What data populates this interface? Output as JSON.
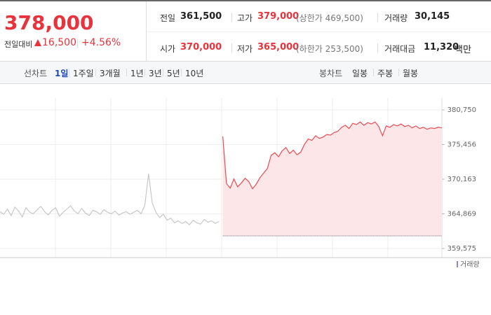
{
  "price": {
    "current": "378,000",
    "change_label": "전일대비",
    "change": "16,500",
    "change_pct": "+4.56%"
  },
  "stats": [
    [
      {
        "label": "전일",
        "value": "361,500"
      },
      {
        "label": "고가",
        "value": "379,000",
        "note": "(상한가 469,500)"
      },
      {
        "label": "거래량",
        "value": "30,145"
      }
    ],
    [
      {
        "label": "시가",
        "value": "370,000"
      },
      {
        "label": "저가",
        "value": "365,000",
        "note": "(하한가 253,500)"
      },
      {
        "label": "거래대금",
        "value": "11,320",
        "unit": "백만"
      }
    ]
  ],
  "tabs": {
    "line_label": "선차트",
    "periods": [
      "1일",
      "1주일",
      "3개월",
      "1년",
      "3년",
      "5년",
      "10년"
    ],
    "active": 0,
    "candle_label": "봉차트",
    "candles": [
      "일봉",
      "주봉",
      "월봉"
    ]
  },
  "chart_data": {
    "type": "line",
    "volume_label": "거래량",
    "base": 361500,
    "ylim": [
      359575,
      380750
    ],
    "yticks": [
      {
        "value": 380750,
        "label": "380,750"
      },
      {
        "value": 375456,
        "label": "375,456"
      },
      {
        "value": 370163,
        "label": "370,163"
      },
      {
        "value": 364869,
        "label": "364,869"
      },
      {
        "value": 359575,
        "label": "359,575"
      }
    ],
    "series": [
      {
        "color": "#c8c8c8",
        "values": [
          365200,
          364800,
          365600,
          364600,
          365900,
          365300,
          364400,
          365800,
          365100,
          364900,
          365500,
          366000,
          365200,
          364700,
          365400,
          365800,
          364500,
          365100,
          365600,
          366100,
          365300,
          364900,
          365700,
          365000,
          364600,
          365400,
          365200,
          364800,
          365500,
          365100,
          364900,
          365300,
          364700,
          365000,
          365200,
          364800,
          365100,
          365400,
          364900,
          366200,
          371000,
          366500,
          365100,
          364300,
          364800,
          363900,
          364200,
          363500,
          363800,
          363400,
          363700,
          363200,
          363900,
          363500,
          363300,
          364000,
          363600,
          363800,
          363400,
          363700,
          null,
          null,
          null,
          null,
          null,
          null,
          null,
          null,
          null,
          null,
          null,
          null,
          null,
          null,
          null,
          null,
          null,
          null,
          null,
          null,
          null,
          null,
          null,
          null,
          null,
          null,
          null,
          null,
          null,
          null,
          null,
          null,
          null,
          null,
          null,
          null,
          null,
          null,
          null,
          null,
          null,
          null,
          null,
          null,
          null,
          null,
          null,
          null,
          null,
          null,
          null,
          null,
          null,
          null,
          null,
          null,
          null,
          null,
          null,
          null
        ]
      },
      {
        "color": "#ec4b52",
        "fill": "#fde6e7",
        "values": [
          null,
          null,
          null,
          null,
          null,
          null,
          null,
          null,
          null,
          null,
          null,
          null,
          null,
          null,
          null,
          null,
          null,
          null,
          null,
          null,
          null,
          null,
          null,
          null,
          null,
          null,
          null,
          null,
          null,
          null,
          null,
          null,
          null,
          null,
          null,
          null,
          null,
          null,
          null,
          null,
          null,
          null,
          null,
          null,
          null,
          null,
          null,
          null,
          null,
          null,
          null,
          null,
          null,
          null,
          null,
          null,
          null,
          null,
          null,
          null,
          376700,
          369500,
          368800,
          370200,
          369000,
          369600,
          370300,
          369800,
          368700,
          369400,
          370400,
          371100,
          371800,
          373800,
          374200,
          373600,
          374500,
          375000,
          374100,
          374600,
          373900,
          374300,
          375500,
          376300,
          376100,
          376800,
          376400,
          376600,
          377000,
          376900,
          377300,
          377500,
          378100,
          378400,
          377900,
          378700,
          378500,
          378900,
          378400,
          378800,
          378600,
          378900,
          378200,
          376800,
          378300,
          378100,
          378500,
          378300,
          378600,
          378200,
          378400,
          378000,
          378300,
          377900,
          378100,
          377800,
          378000,
          377900,
          378100,
          378000
        ]
      }
    ]
  }
}
